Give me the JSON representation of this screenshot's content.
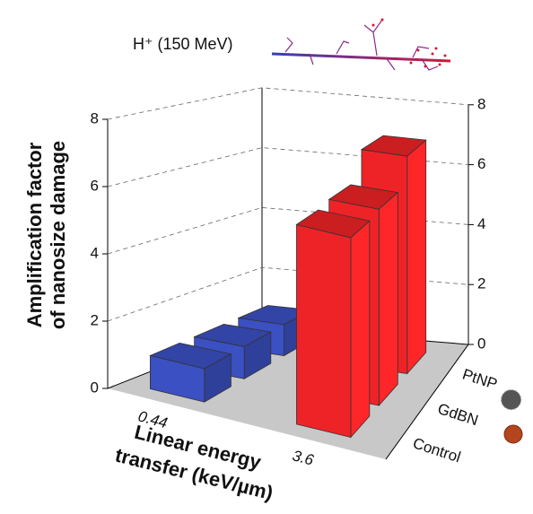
{
  "header": "H⁺ (150 MeV)",
  "chart_data": {
    "type": "bar3d",
    "ylabel": [
      "Amplification factor",
      "of nanosize damage"
    ],
    "xlabel": [
      "Linear energy",
      "transfer (keV/µm)"
    ],
    "categories": [
      "0.44",
      "3.6"
    ],
    "colors": [
      "#3b50c2",
      "#ee2327"
    ],
    "series": [
      {
        "name": "Control",
        "values": [
          1.0,
          6.0
        ]
      },
      {
        "name": "GdBN",
        "values": [
          1.0,
          6.1
        ]
      },
      {
        "name": "PtNP",
        "values": [
          1.0,
          7.0
        ]
      }
    ],
    "ylim": [
      0,
      8
    ],
    "yticks": [
      0,
      2,
      4,
      6,
      8
    ],
    "grid": true
  }
}
